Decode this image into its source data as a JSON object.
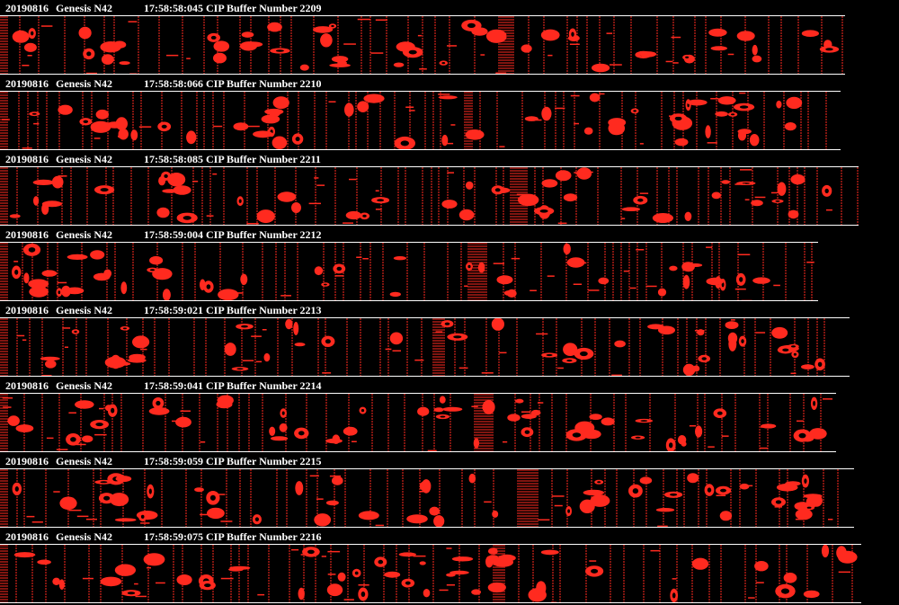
{
  "colors": {
    "background": "#000000",
    "particle": "#ff2a1f",
    "line": "#ffffff",
    "header_text": "#ffffff"
  },
  "buffers": [
    {
      "date": "20190816",
      "probe": "Genesis N42",
      "time": "17:58:58:045",
      "label": "CIP Buffer Number 2209"
    },
    {
      "date": "20190816",
      "probe": "Genesis N42",
      "time": "17:58:58:066",
      "label": "CIP Buffer Number 2210"
    },
    {
      "date": "20190816",
      "probe": "Genesis N42",
      "time": "17:58:58:085",
      "label": "CIP Buffer Number 2211"
    },
    {
      "date": "20190816",
      "probe": "Genesis N42",
      "time": "17:58:59:004",
      "label": "CIP Buffer Number 2212"
    },
    {
      "date": "20190816",
      "probe": "Genesis N42",
      "time": "17:58:59:021",
      "label": "CIP Buffer Number 2213"
    },
    {
      "date": "20190816",
      "probe": "Genesis N42",
      "time": "17:58:59:041",
      "label": "CIP Buffer Number 2214"
    },
    {
      "date": "20190816",
      "probe": "Genesis N42",
      "time": "17:58:59:059",
      "label": "CIP Buffer Number 2215"
    },
    {
      "date": "20190816",
      "probe": "Genesis N42",
      "time": "17:58:59:075",
      "label": "CIP Buffer Number 2216"
    }
  ]
}
